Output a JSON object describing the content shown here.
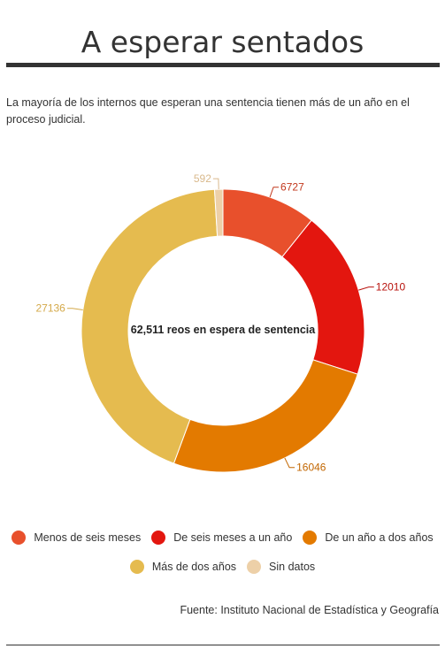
{
  "header": {
    "title": "A esperar sentados",
    "subtitle": "La mayoría de los internos que esperan una sentencia tienen más de un año en el proceso judicial."
  },
  "chart_data": {
    "type": "pie",
    "variant": "donut",
    "center_label": "62,511 reos en espera de sentencia",
    "categories": [
      "Menos de seis meses",
      "De seis meses a un año",
      "De un año a dos años",
      "Más de dos años",
      "Sin datos"
    ],
    "values": [
      6727,
      12010,
      16046,
      27136,
      592
    ],
    "colors": [
      "#e8502c",
      "#e3160f",
      "#e37a00",
      "#e5bb4f",
      "#edd0a8"
    ],
    "label_colors": [
      "#c2381d",
      "#b8120c",
      "#c26600",
      "#d4a94a",
      "#d9b98c"
    ],
    "legend_position": "bottom"
  },
  "footer": {
    "source": "Fuente: Instituto Nacional de Estadística y Geografía"
  }
}
